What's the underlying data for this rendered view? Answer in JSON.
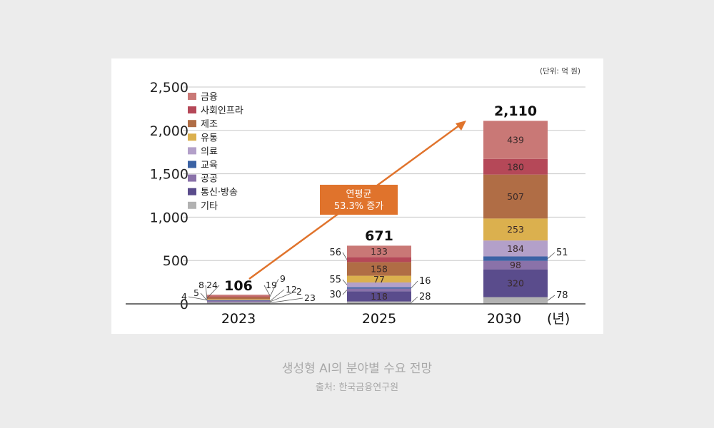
{
  "caption": {
    "title": "생성형 AI의 분야별 수요 전망",
    "source": "출처: 한국금융연구원"
  },
  "chart_data": {
    "type": "bar",
    "stacked": true,
    "unit_label": "(단위: 억 원)",
    "categories": [
      "2023",
      "2025",
      "2030"
    ],
    "x_suffix": "(년)",
    "ylim": [
      0,
      2500
    ],
    "yticks": [
      0,
      500,
      1000,
      1500,
      2000,
      2500
    ],
    "ytick_labels": [
      "0",
      "500",
      "1,000",
      "1,500",
      "2,000",
      "2,500"
    ],
    "grid": true,
    "legend_position": "top-left",
    "totals": [
      106,
      671,
      2110
    ],
    "total_labels": [
      "106",
      "671",
      "2,110"
    ],
    "series": [
      {
        "name": "기타",
        "color": "#b2b2b2",
        "values": [
          23,
          28,
          78
        ]
      },
      {
        "name": "통신·방송",
        "color": "#5a4c8c",
        "values": [
          2,
          118,
          320
        ]
      },
      {
        "name": "공공",
        "color": "#8a72a9",
        "values": [
          12,
          30,
          98
        ]
      },
      {
        "name": "교육",
        "color": "#3b62a4",
        "values": [
          5,
          16,
          51
        ]
      },
      {
        "name": "의료",
        "color": "#b3a0c9",
        "values": [
          4,
          55,
          184
        ]
      },
      {
        "name": "유통",
        "color": "#dbb04e",
        "values": [
          8,
          77,
          253
        ]
      },
      {
        "name": "제조",
        "color": "#b06d45",
        "values": [
          24,
          158,
          507
        ]
      },
      {
        "name": "사회인프라",
        "color": "#b54858",
        "values": [
          9,
          56,
          180
        ]
      },
      {
        "name": "금융",
        "color": "#c97876",
        "values": [
          19,
          133,
          439
        ]
      }
    ],
    "legend_order": [
      "금융",
      "사회인프라",
      "제조",
      "유통",
      "의료",
      "교육",
      "공공",
      "통신·방송",
      "기타"
    ],
    "annotation": {
      "line1": "연평균",
      "line2": "53.3% 증가",
      "color": "#e0732c"
    }
  }
}
